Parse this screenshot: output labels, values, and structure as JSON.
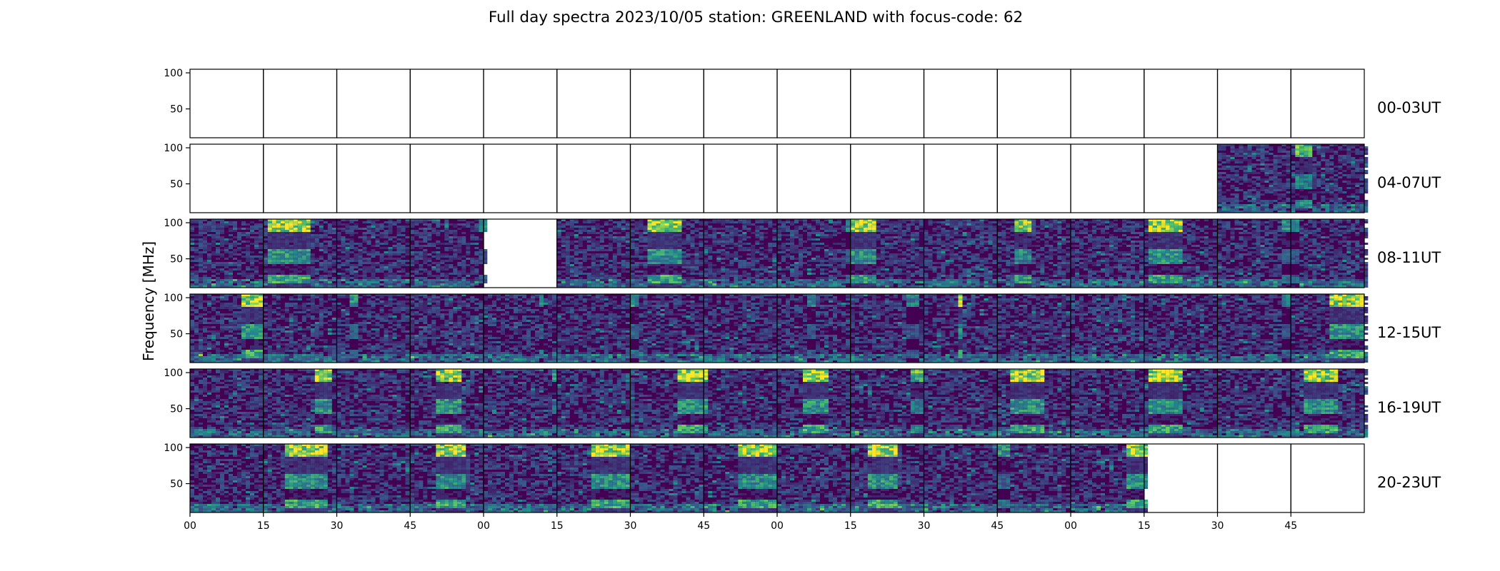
{
  "chart_data": {
    "type": "heatmap",
    "title": "Full day spectra 2023/10/05 station: GREENLAND with focus-code: 62",
    "ylabel": "Frequency [MHz]",
    "colormap": "viridis",
    "colors": {
      "low": "#440154",
      "mid": "#3b528b",
      "teal": "#21918c",
      "green": "#5ec962",
      "high": "#fde725"
    },
    "ylim": [
      10,
      105
    ],
    "y_ticks": [
      "100",
      "50"
    ],
    "x_tick_labels": [
      "00",
      "15",
      "30",
      "45",
      "00",
      "15",
      "30",
      "45",
      "00",
      "15",
      "30",
      "45",
      "00",
      "15",
      "30",
      "45"
    ],
    "rows": [
      {
        "label": "00-03UT",
        "panels": [
          {
            "has_data": false
          },
          {
            "has_data": false
          },
          {
            "has_data": false
          },
          {
            "has_data": false
          },
          {
            "has_data": false
          },
          {
            "has_data": false
          },
          {
            "has_data": false
          },
          {
            "has_data": false
          },
          {
            "has_data": false
          },
          {
            "has_data": false
          },
          {
            "has_data": false
          },
          {
            "has_data": false
          },
          {
            "has_data": false
          },
          {
            "has_data": false
          },
          {
            "has_data": false
          },
          {
            "has_data": false
          }
        ]
      },
      {
        "label": "04-07UT",
        "panels": [
          {
            "has_data": false
          },
          {
            "has_data": false
          },
          {
            "has_data": false
          },
          {
            "has_data": false
          },
          {
            "has_data": false
          },
          {
            "has_data": false
          },
          {
            "has_data": false
          },
          {
            "has_data": false
          },
          {
            "has_data": false
          },
          {
            "has_data": false
          },
          {
            "has_data": false
          },
          {
            "has_data": false
          },
          {
            "has_data": false
          },
          {
            "has_data": false
          },
          {
            "has_data": true,
            "bursts": []
          },
          {
            "has_data": true,
            "bursts": [
              {
                "from": 0.05,
                "to": 0.25,
                "level": 0.8
              }
            ]
          }
        ]
      },
      {
        "label": "08-11UT",
        "panels": [
          {
            "has_data": true,
            "bursts": []
          },
          {
            "has_data": true,
            "bursts": [
              {
                "from": 0.05,
                "to": 0.6,
                "level": 1.0
              }
            ]
          },
          {
            "has_data": true,
            "bursts": []
          },
          {
            "has_data": true,
            "bursts": [
              {
                "from": 0.9,
                "to": 1.0,
                "level": 0.5
              }
            ]
          },
          {
            "has_data": false
          },
          {
            "has_data": true,
            "bursts": []
          },
          {
            "has_data": true,
            "bursts": [
              {
                "from": 0.25,
                "to": 0.65,
                "level": 1.0
              }
            ]
          },
          {
            "has_data": true,
            "bursts": []
          },
          {
            "has_data": true,
            "bursts": [
              {
                "from": 0.9,
                "to": 1.0,
                "level": 0.5
              }
            ]
          },
          {
            "has_data": true,
            "bursts": [
              {
                "from": 0.0,
                "to": 0.35,
                "level": 1.0
              }
            ]
          },
          {
            "has_data": true,
            "bursts": []
          },
          {
            "has_data": true,
            "bursts": [
              {
                "from": 0.25,
                "to": 0.45,
                "level": 0.9
              }
            ]
          },
          {
            "has_data": true,
            "bursts": []
          },
          {
            "has_data": true,
            "bursts": [
              {
                "from": 0.05,
                "to": 0.5,
                "level": 1.0
              }
            ]
          },
          {
            "has_data": true,
            "bursts": [
              {
                "from": 0.85,
                "to": 1.0,
                "level": 0.6
              }
            ]
          },
          {
            "has_data": true,
            "bursts": [
              {
                "from": 0.0,
                "to": 0.1,
                "level": 0.5
              }
            ]
          }
        ]
      },
      {
        "label": "12-15UT",
        "panels": [
          {
            "has_data": true,
            "bursts": [
              {
                "from": 0.65,
                "to": 0.95,
                "level": 1.0
              }
            ]
          },
          {
            "has_data": true,
            "bursts": []
          },
          {
            "has_data": true,
            "bursts": [
              {
                "from": 0.15,
                "to": 0.3,
                "level": 0.6
              }
            ]
          },
          {
            "has_data": true,
            "bursts": []
          },
          {
            "has_data": true,
            "bursts": [
              {
                "from": 0.7,
                "to": 0.8,
                "level": 0.6
              }
            ]
          },
          {
            "has_data": true,
            "bursts": []
          },
          {
            "has_data": true,
            "bursts": [
              {
                "from": 0.0,
                "to": 0.1,
                "level": 0.6
              }
            ]
          },
          {
            "has_data": true,
            "bursts": []
          },
          {
            "has_data": true,
            "bursts": [
              {
                "from": 0.4,
                "to": 0.5,
                "level": 0.5
              }
            ]
          },
          {
            "has_data": true,
            "bursts": [
              {
                "from": 0.75,
                "to": 0.9,
                "level": 0.5
              }
            ]
          },
          {
            "has_data": true,
            "bursts": [
              {
                "from": 0.45,
                "to": 0.5,
                "level": 1.0
              }
            ]
          },
          {
            "has_data": true,
            "bursts": []
          },
          {
            "has_data": true,
            "bursts": []
          },
          {
            "has_data": true,
            "bursts": []
          },
          {
            "has_data": true,
            "bursts": [
              {
                "from": 0.85,
                "to": 1.0,
                "level": 0.5
              }
            ]
          },
          {
            "has_data": true,
            "bursts": [
              {
                "from": 0.5,
                "to": 0.95,
                "level": 1.0
              }
            ]
          }
        ]
      },
      {
        "label": "16-19UT",
        "panels": [
          {
            "has_data": true,
            "bursts": []
          },
          {
            "has_data": true,
            "bursts": [
              {
                "from": 0.65,
                "to": 0.9,
                "level": 1.0
              }
            ]
          },
          {
            "has_data": true,
            "bursts": []
          },
          {
            "has_data": true,
            "bursts": [
              {
                "from": 0.35,
                "to": 0.65,
                "level": 1.0
              }
            ]
          },
          {
            "has_data": true,
            "bursts": [
              {
                "from": 0.9,
                "to": 1.0,
                "level": 0.7
              }
            ]
          },
          {
            "has_data": true,
            "bursts": []
          },
          {
            "has_data": true,
            "bursts": [
              {
                "from": 0.6,
                "to": 1.0,
                "level": 1.0
              }
            ]
          },
          {
            "has_data": true,
            "bursts": [
              {
                "from": 0.0,
                "to": 0.05,
                "level": 1.0
              }
            ]
          },
          {
            "has_data": true,
            "bursts": [
              {
                "from": 0.35,
                "to": 0.65,
                "level": 1.0
              }
            ]
          },
          {
            "has_data": true,
            "bursts": [
              {
                "from": 0.8,
                "to": 1.0,
                "level": 0.8
              }
            ]
          },
          {
            "has_data": true,
            "bursts": []
          },
          {
            "has_data": true,
            "bursts": [
              {
                "from": 0.15,
                "to": 0.6,
                "level": 1.0
              }
            ]
          },
          {
            "has_data": true,
            "bursts": []
          },
          {
            "has_data": true,
            "bursts": [
              {
                "from": 0.05,
                "to": 0.5,
                "level": 1.0
              }
            ]
          },
          {
            "has_data": true,
            "bursts": []
          },
          {
            "has_data": true,
            "bursts": [
              {
                "from": 0.15,
                "to": 0.6,
                "level": 1.0
              }
            ]
          }
        ]
      },
      {
        "label": "20-23UT",
        "panels": [
          {
            "has_data": true,
            "bursts": []
          },
          {
            "has_data": true,
            "bursts": [
              {
                "from": 0.3,
                "to": 0.85,
                "level": 1.0
              }
            ]
          },
          {
            "has_data": true,
            "bursts": []
          },
          {
            "has_data": true,
            "bursts": [
              {
                "from": 0.35,
                "to": 0.7,
                "level": 1.0
              }
            ]
          },
          {
            "has_data": true,
            "bursts": []
          },
          {
            "has_data": true,
            "bursts": [
              {
                "from": 0.45,
                "to": 1.0,
                "level": 1.0
              }
            ]
          },
          {
            "has_data": true,
            "bursts": []
          },
          {
            "has_data": true,
            "bursts": [
              {
                "from": 0.45,
                "to": 0.95,
                "level": 1.0
              }
            ]
          },
          {
            "has_data": true,
            "bursts": []
          },
          {
            "has_data": true,
            "bursts": [
              {
                "from": 0.25,
                "to": 0.6,
                "level": 1.0
              }
            ]
          },
          {
            "has_data": true,
            "bursts": []
          },
          {
            "has_data": true,
            "bursts": [
              {
                "from": 0.0,
                "to": 0.15,
                "level": 0.6
              }
            ]
          },
          {
            "has_data": true,
            "bursts": [
              {
                "from": 0.75,
                "to": 1.0,
                "level": 1.0
              }
            ]
          },
          {
            "has_data": false
          },
          {
            "has_data": false
          },
          {
            "has_data": false
          }
        ]
      }
    ]
  }
}
